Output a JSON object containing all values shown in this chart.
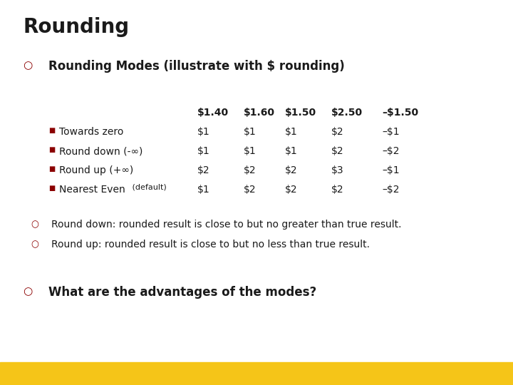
{
  "title": "Rounding",
  "title_fontsize": 20,
  "title_color": "#1a1a1a",
  "bg_color": "#ffffff",
  "gold_bar_color": "#F5C518",
  "bullet_color": "#8B0000",
  "bullet1_text": "Rounding Modes (illustrate with $ rounding)",
  "bullet1_fontsize": 12,
  "col_headers": [
    "$1.40",
    "$1.60",
    "$1.50",
    "$2.50",
    "–$1.50"
  ],
  "row_labels": [
    "Towards zero",
    "Round down (-∞)",
    "Round up (+∞)",
    "Nearest Even"
  ],
  "row_label_suffix": [
    "",
    "",
    "",
    " (default)"
  ],
  "table_data": [
    [
      "$1",
      "$1",
      "$1",
      "$2",
      "–$1"
    ],
    [
      "$1",
      "$1",
      "$1",
      "$2",
      "–$2"
    ],
    [
      "$2",
      "$2",
      "$2",
      "$3",
      "–$1"
    ],
    [
      "$1",
      "$2",
      "$2",
      "$2",
      "–$2"
    ]
  ],
  "note1": "Round down: rounded result is close to but no greater than true result.",
  "note2": "Round up: rounded result is close to but no less than true result.",
  "question": "What are the advantages of the modes?",
  "note_fontsize": 10,
  "question_fontsize": 12,
  "header_fontsize": 10,
  "table_fontsize": 10,
  "row_label_fontsize": 10,
  "suffix_fontsize": 8
}
